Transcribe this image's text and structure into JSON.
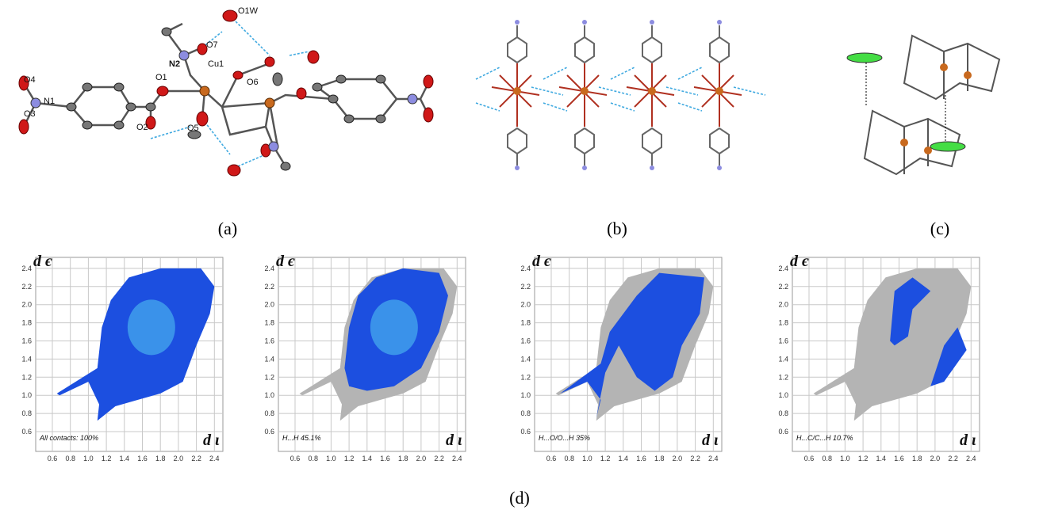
{
  "panels": [
    {
      "label": "(a)",
      "atoms": [
        "O1W",
        "O7",
        "N2",
        "Cu1",
        "O6",
        "O1",
        "O4",
        "N1",
        "O3",
        "O2",
        "O5"
      ]
    },
    {
      "label": "(b)"
    },
    {
      "label": "(c)"
    }
  ],
  "fingerprints": {
    "label": "(d)",
    "x_label": "d ι",
    "y_label": "d є",
    "xticks": [
      "0.6",
      "0.8",
      "1.0",
      "1.2",
      "1.4",
      "1.6",
      "1.8",
      "2.0",
      "2.2",
      "2.4"
    ],
    "yticks": [
      "0.6",
      "0.8",
      "1.0",
      "1.2",
      "1.4",
      "1.6",
      "1.8",
      "2.0",
      "2.2",
      "2.4"
    ],
    "plots": [
      {
        "caption": "All contacts: 100%"
      },
      {
        "caption": "H...H 45.1%"
      },
      {
        "caption": "H...O/O...H 35%"
      },
      {
        "caption": "H...C/C...H 10.7%"
      }
    ]
  }
}
